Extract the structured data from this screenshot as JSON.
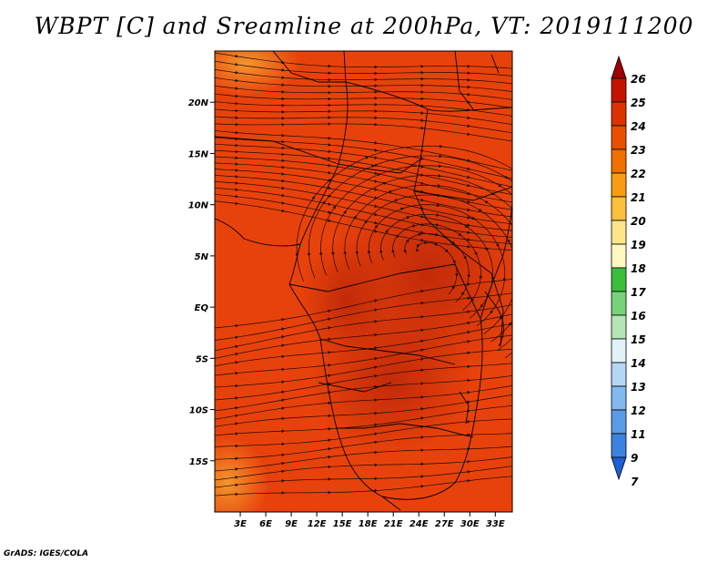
{
  "title": "WBPT [C] and Sreamline at 200hPa, VT: 2019111200",
  "credit": "GrADS: IGES/COLA",
  "map": {
    "lon_range": [
      0,
      35
    ],
    "lat_range": [
      -20,
      25
    ],
    "x_ticks": [
      "3E",
      "6E",
      "9E",
      "12E",
      "15E",
      "18E",
      "21E",
      "24E",
      "27E",
      "30E",
      "33E"
    ],
    "x_tick_values": [
      3,
      6,
      9,
      12,
      15,
      18,
      21,
      24,
      27,
      30,
      33
    ],
    "y_ticks": [
      "20N",
      "15N",
      "10N",
      "5N",
      "EQ",
      "5S",
      "10S",
      "15S"
    ],
    "y_tick_values": [
      20,
      15,
      10,
      5,
      0,
      -5,
      -10,
      -15
    ],
    "field_base_color": "#e8420c",
    "field_dark_color": "#c42a0a",
    "field_light_color": "#f07a18"
  },
  "colorbar": {
    "labels": [
      "26",
      "25",
      "24",
      "23",
      "22",
      "21",
      "20",
      "19",
      "18",
      "17",
      "16",
      "15",
      "14",
      "13",
      "12",
      "11",
      "9",
      "7"
    ],
    "colors": [
      "#a00000",
      "#c41400",
      "#dc3200",
      "#e85000",
      "#f07000",
      "#f89c14",
      "#fcc03c",
      "#fce68c",
      "#fcf8c0",
      "#3cbe3c",
      "#78d278",
      "#b4e6b4",
      "#e0f4f8",
      "#b4d7f5",
      "#82b9f0",
      "#5a9be6",
      "#3c82e0",
      "#1e5fd2"
    ]
  }
}
